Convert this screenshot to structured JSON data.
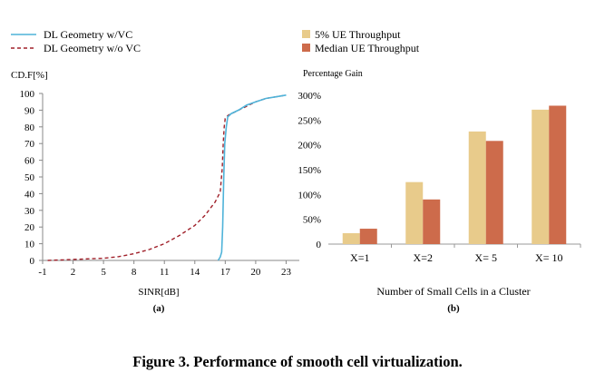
{
  "figure": {
    "caption": "Figure 3. Performance of smooth cell virtualization."
  },
  "chart_data": [
    {
      "type": "line",
      "panel_label": "(a)",
      "ylabel": "CD.F[%]",
      "xlabel": "SINR[dB]",
      "xticks": [
        -1,
        2,
        5,
        8,
        11,
        14,
        17,
        20,
        23
      ],
      "yticks": [
        0,
        10,
        20,
        30,
        40,
        50,
        60,
        70,
        80,
        90,
        100
      ],
      "xlim": [
        -1,
        24.3
      ],
      "ylim": [
        0,
        100
      ],
      "legend_position": "top-left",
      "series": [
        {
          "name": "DL Geometry w/VC",
          "color": "#4FB3D9",
          "dash": "solid",
          "points": [
            [
              16.3,
              0
            ],
            [
              16.5,
              2
            ],
            [
              16.65,
              5
            ],
            [
              16.75,
              20
            ],
            [
              16.85,
              50
            ],
            [
              16.95,
              70
            ],
            [
              17.1,
              80
            ],
            [
              17.25,
              86
            ],
            [
              17.6,
              88
            ],
            [
              18.3,
              90
            ],
            [
              19.1,
              93
            ],
            [
              20.0,
              95
            ],
            [
              21.0,
              97
            ],
            [
              22.0,
              98
            ],
            [
              23.0,
              99
            ]
          ]
        },
        {
          "name": "DL Geometry w/o VC",
          "color": "#A0202A",
          "dash": "dashed",
          "points": [
            [
              -0.5,
              0
            ],
            [
              1,
              0.3
            ],
            [
              2,
              0.6
            ],
            [
              3,
              0.8
            ],
            [
              5,
              1.3
            ],
            [
              6.5,
              2.3
            ],
            [
              8,
              4
            ],
            [
              9.5,
              6.5
            ],
            [
              11,
              10
            ],
            [
              12.5,
              15
            ],
            [
              14,
              21
            ],
            [
              15,
              27
            ],
            [
              16,
              35
            ],
            [
              16.5,
              41
            ],
            [
              16.7,
              55
            ],
            [
              16.8,
              70
            ],
            [
              16.9,
              80
            ],
            [
              17.0,
              85
            ],
            [
              17.3,
              87
            ],
            [
              18,
              89
            ],
            [
              19,
              92
            ],
            [
              20,
              95
            ],
            [
              21,
              97
            ],
            [
              22,
              98
            ],
            [
              23,
              99
            ]
          ]
        }
      ]
    },
    {
      "type": "bar",
      "panel_label": "(b)",
      "ylabel": "Percentage Gain",
      "xlabel": "Number of Small Cells in a Cluster",
      "categories": [
        "X=1",
        "X=2",
        "X= 5",
        "X= 10"
      ],
      "yticks": [
        "0",
        "50%",
        "100%",
        "150%",
        "200%",
        "250%",
        "300%"
      ],
      "ylim": [
        0,
        300
      ],
      "legend_position": "top",
      "series": [
        {
          "name": "5% UE Throughput",
          "color": "#E8CB8B",
          "values": [
            22,
            125,
            227,
            271
          ]
        },
        {
          "name": "Median UE Throughput",
          "color": "#CD6B4B",
          "values": [
            31,
            90,
            208,
            279
          ]
        }
      ]
    }
  ]
}
